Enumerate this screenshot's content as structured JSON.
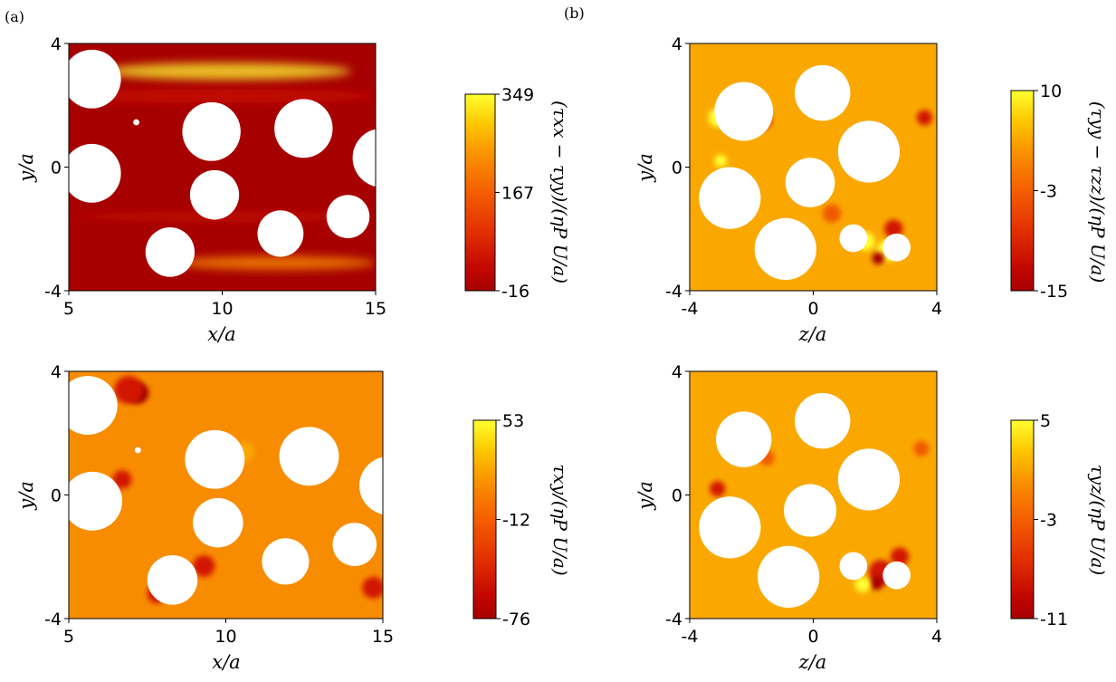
{
  "panel_labels": [
    "(a)",
    "(b)"
  ],
  "colors": {
    "dark": "#a60000",
    "red": "#d21500",
    "mid": "#f05a00",
    "orange": "#f88c00",
    "light_orange": "#faa800",
    "yellow": "#ffff30"
  },
  "chart_data": [
    {
      "type": "heatmap",
      "title": "",
      "xlabel": "x/a",
      "ylabel": "y/a",
      "xlim": [
        5,
        15
      ],
      "ylim": [
        -4,
        4
      ],
      "xticks": [
        "5",
        "10",
        "15"
      ],
      "yticks": [
        "-4",
        "0",
        "4"
      ],
      "colorbar": {
        "label": "(τxx − τyy)/(ηP U/a)",
        "ticks": [
          "349",
          "167",
          "-16"
        ],
        "min": -16,
        "max": 349
      },
      "obstacles": [
        {
          "x": 5.75,
          "y": 2.85,
          "r": 0.95
        },
        {
          "x": 5.75,
          "y": -0.2,
          "r": 0.95
        },
        {
          "x": 9.65,
          "y": 1.15,
          "r": 0.95
        },
        {
          "x": 12.65,
          "y": 1.25,
          "r": 0.95
        },
        {
          "x": 15.2,
          "y": 0.3,
          "r": 0.95
        },
        {
          "x": 9.75,
          "y": -0.9,
          "r": 0.8
        },
        {
          "x": 11.9,
          "y": -2.15,
          "r": 0.75
        },
        {
          "x": 14.1,
          "y": -1.6,
          "r": 0.7
        },
        {
          "x": 8.3,
          "y": -2.75,
          "r": 0.8
        },
        {
          "x": 7.2,
          "y": 1.45,
          "r": 0.1
        }
      ],
      "bands": [
        {
          "x0": 6.1,
          "x1": 14.2,
          "y": 3.1,
          "h": 0.55,
          "c": "yellow",
          "o": 0.75
        },
        {
          "x0": 8.5,
          "x1": 15,
          "y": -3.1,
          "h": 0.45,
          "c": "orange",
          "o": 0.8
        },
        {
          "x0": 5,
          "x1": 15,
          "y": 2.3,
          "h": 0.45,
          "c": "red",
          "o": 0.65
        },
        {
          "x0": 5,
          "x1": 15,
          "y": -1.6,
          "h": 0.35,
          "c": "red",
          "o": 0.45
        }
      ]
    },
    {
      "type": "heatmap",
      "title": "",
      "xlabel": "z/a",
      "ylabel": "y/a",
      "xlim": [
        -4,
        4
      ],
      "ylim": [
        -4,
        4
      ],
      "xticks": [
        "-4",
        "0",
        "4"
      ],
      "yticks": [
        "-4",
        "0",
        "4"
      ],
      "colorbar": {
        "label": "(τyy − τzz)/(ηP U/a)",
        "ticks": [
          "10",
          "-3",
          "-15"
        ],
        "min": -15,
        "max": 10
      },
      "obstacles": [
        {
          "x": -2.25,
          "y": 1.8,
          "r": 0.95
        },
        {
          "x": 0.3,
          "y": 2.4,
          "r": 0.9
        },
        {
          "x": 1.8,
          "y": 0.5,
          "r": 1.0
        },
        {
          "x": -0.1,
          "y": -0.5,
          "r": 0.8
        },
        {
          "x": -2.7,
          "y": -1.0,
          "r": 1.0
        },
        {
          "x": -0.9,
          "y": -2.65,
          "r": 1.0
        },
        {
          "x": 1.3,
          "y": -2.3,
          "r": 0.45
        },
        {
          "x": 2.7,
          "y": -2.6,
          "r": 0.45
        }
      ],
      "spots": [
        {
          "x": 2.4,
          "y": -2.7,
          "r": 0.35,
          "c": "yellow"
        },
        {
          "x": 2.1,
          "y": -2.95,
          "r": 0.2,
          "c": "dark"
        },
        {
          "x": 1.7,
          "y": -2.4,
          "r": 0.3,
          "c": "yellow"
        },
        {
          "x": 2.6,
          "y": -2.0,
          "r": 0.3,
          "c": "red"
        },
        {
          "x": -3.1,
          "y": 1.6,
          "r": 0.3,
          "c": "yellow"
        },
        {
          "x": -3.0,
          "y": 0.2,
          "r": 0.2,
          "c": "yellow"
        },
        {
          "x": 3.6,
          "y": 1.6,
          "r": 0.25,
          "c": "red"
        },
        {
          "x": -1.6,
          "y": 1.5,
          "r": 0.25,
          "c": "red"
        },
        {
          "x": 0.6,
          "y": -1.5,
          "r": 0.3,
          "c": "mid"
        }
      ]
    },
    {
      "type": "heatmap",
      "title": "",
      "xlabel": "x/a",
      "ylabel": "y/a",
      "xlim": [
        5,
        15
      ],
      "ylim": [
        -4,
        4
      ],
      "xticks": [
        "5",
        "10",
        "15"
      ],
      "yticks": [
        "-4",
        "0",
        "4"
      ],
      "colorbar": {
        "label": "τxy/(ηP U/a)",
        "ticks": [
          "53",
          "-12",
          "-76"
        ],
        "min": -76,
        "max": 53
      },
      "obstacles": [
        {
          "x": 5.6,
          "y": 2.9,
          "r": 0.95
        },
        {
          "x": 5.75,
          "y": -0.2,
          "r": 0.95
        },
        {
          "x": 9.65,
          "y": 1.15,
          "r": 0.95
        },
        {
          "x": 12.65,
          "y": 1.25,
          "r": 0.95
        },
        {
          "x": 15.2,
          "y": 0.3,
          "r": 0.95
        },
        {
          "x": 9.75,
          "y": -0.9,
          "r": 0.8
        },
        {
          "x": 11.9,
          "y": -2.15,
          "r": 0.75
        },
        {
          "x": 14.1,
          "y": -1.6,
          "r": 0.7
        },
        {
          "x": 8.3,
          "y": -2.75,
          "r": 0.8
        },
        {
          "x": 7.2,
          "y": 1.45,
          "r": 0.1
        }
      ],
      "spots": [
        {
          "x": 7.2,
          "y": 3.3,
          "r": 0.35,
          "c": "dark"
        },
        {
          "x": 6.9,
          "y": 3.4,
          "r": 0.45,
          "c": "red"
        },
        {
          "x": 9.3,
          "y": -2.3,
          "r": 0.35,
          "c": "red"
        },
        {
          "x": 14.7,
          "y": -3.0,
          "r": 0.35,
          "c": "red"
        },
        {
          "x": 6.7,
          "y": 0.5,
          "r": 0.3,
          "c": "red"
        },
        {
          "x": 10.6,
          "y": 1.4,
          "r": 0.3,
          "c": "light_orange"
        },
        {
          "x": 7.8,
          "y": -3.2,
          "r": 0.3,
          "c": "red"
        }
      ]
    },
    {
      "type": "heatmap",
      "title": "",
      "xlabel": "z/a",
      "ylabel": "y/a",
      "xlim": [
        -4,
        4
      ],
      "ylim": [
        -4,
        4
      ],
      "xticks": [
        "-4",
        "0",
        "4"
      ],
      "yticks": [
        "-4",
        "0",
        "4"
      ],
      "colorbar": {
        "label": "τyz/(ηP U/a)",
        "ticks": [
          "5",
          "-3",
          "-11"
        ],
        "min": -11,
        "max": 5
      },
      "obstacles": [
        {
          "x": -2.25,
          "y": 1.8,
          "r": 0.9
        },
        {
          "x": 0.3,
          "y": 2.4,
          "r": 0.9
        },
        {
          "x": 1.8,
          "y": 0.5,
          "r": 1.0
        },
        {
          "x": -0.1,
          "y": -0.5,
          "r": 0.85
        },
        {
          "x": -2.7,
          "y": -1.05,
          "r": 1.0
        },
        {
          "x": -0.8,
          "y": -2.65,
          "r": 1.0
        },
        {
          "x": 1.3,
          "y": -2.3,
          "r": 0.45
        },
        {
          "x": 2.7,
          "y": -2.6,
          "r": 0.45
        }
      ],
      "spots": [
        {
          "x": 2.2,
          "y": -2.5,
          "r": 0.4,
          "c": "red"
        },
        {
          "x": 2.05,
          "y": -2.85,
          "r": 0.22,
          "c": "dark"
        },
        {
          "x": 2.8,
          "y": -2.0,
          "r": 0.3,
          "c": "red"
        },
        {
          "x": -3.1,
          "y": 0.2,
          "r": 0.25,
          "c": "red"
        },
        {
          "x": 1.6,
          "y": -2.9,
          "r": 0.25,
          "c": "yellow"
        },
        {
          "x": 3.5,
          "y": 1.5,
          "r": 0.25,
          "c": "mid"
        },
        {
          "x": -1.5,
          "y": 1.2,
          "r": 0.25,
          "c": "mid"
        }
      ]
    }
  ]
}
